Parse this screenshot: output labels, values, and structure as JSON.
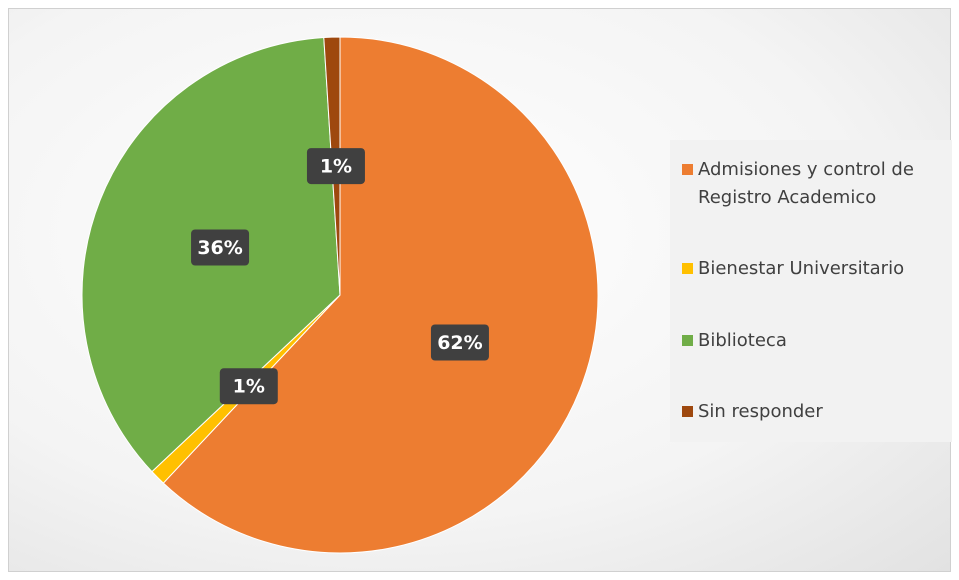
{
  "chart_data": {
    "type": "pie",
    "categories": [
      "Admisiones y control de Registro Academico",
      "Bienestar Universitario",
      "Biblioteca",
      "Sin responder"
    ],
    "values": [
      62,
      1,
      36,
      1
    ],
    "value_labels": [
      "62%",
      "1%",
      "36%",
      "1%"
    ],
    "colors": [
      "#ed7d31",
      "#ffc000",
      "#70ad47",
      "#9e480e"
    ],
    "legend": "right"
  }
}
